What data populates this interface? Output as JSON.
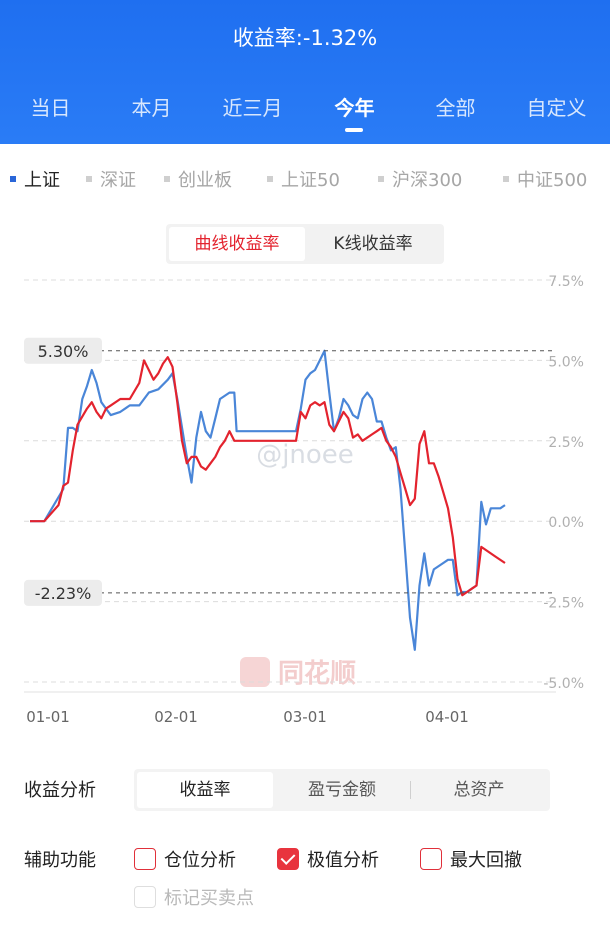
{
  "header": {
    "title": "收益率:-1.32%",
    "tabs": [
      "当日",
      "本月",
      "近三月",
      "今年",
      "全部",
      "自定义"
    ],
    "active_tab": 3
  },
  "index_tabs": {
    "items": [
      "上证",
      "深证",
      "创业板",
      "上证50",
      "沪深300",
      "中证500"
    ],
    "active": 0
  },
  "mode_toggle": {
    "options": [
      "曲线收益率",
      "K线收益率"
    ],
    "active": 0
  },
  "chart_data": {
    "type": "line",
    "x_ticks": [
      "01-01",
      "02-01",
      "03-01",
      "04-01"
    ],
    "y_ticks": [
      "7.5%",
      "5.0%",
      "2.5%",
      "0.0%",
      "-2.5%",
      "-5.0%"
    ],
    "ylim": [
      -5,
      7.5
    ],
    "max_label": "5.30%",
    "min_label": "-2.23%",
    "max_value": 5.3,
    "min_value": -2.23,
    "watermark": "@jnoee",
    "logo": "同花顺",
    "x_range": [
      0,
      100
    ],
    "series": [
      {
        "color": "#4a86d8",
        "points": [
          [
            0,
            0
          ],
          [
            3,
            0
          ],
          [
            7,
            1
          ],
          [
            8,
            2.9
          ],
          [
            9,
            2.9
          ],
          [
            10,
            2.8
          ],
          [
            11,
            3.8
          ],
          [
            12,
            4.2
          ],
          [
            13,
            4.7
          ],
          [
            14,
            4.3
          ],
          [
            15,
            3.7
          ],
          [
            16,
            3.5
          ],
          [
            17,
            3.3
          ],
          [
            19,
            3.4
          ],
          [
            21,
            3.6
          ],
          [
            23,
            3.6
          ],
          [
            25,
            4
          ],
          [
            27,
            4.1
          ],
          [
            29,
            4.4
          ],
          [
            30,
            4.6
          ],
          [
            31,
            3.8
          ],
          [
            33,
            2
          ],
          [
            34,
            1.2
          ],
          [
            35,
            2.6
          ],
          [
            36,
            3.4
          ],
          [
            37,
            2.8
          ],
          [
            38,
            2.6
          ],
          [
            39,
            3.2
          ],
          [
            40,
            3.8
          ],
          [
            42,
            4
          ],
          [
            43,
            4
          ],
          [
            43.5,
            2.8
          ],
          [
            45,
            2.8
          ],
          [
            48,
            2.8
          ],
          [
            51,
            2.8
          ],
          [
            54,
            2.8
          ],
          [
            56,
            2.8
          ],
          [
            57,
            3.5
          ],
          [
            58,
            4.4
          ],
          [
            59,
            4.6
          ],
          [
            60,
            4.7
          ],
          [
            61,
            5
          ],
          [
            62,
            5.3
          ],
          [
            63,
            4
          ],
          [
            64,
            2.8
          ],
          [
            65,
            3.2
          ],
          [
            66,
            3.8
          ],
          [
            67,
            3.6
          ],
          [
            68,
            3.3
          ],
          [
            69,
            3.2
          ],
          [
            70,
            3.8
          ],
          [
            71,
            4
          ],
          [
            72,
            3.8
          ],
          [
            73,
            3.1
          ],
          [
            74,
            3.1
          ],
          [
            75,
            2.6
          ],
          [
            76,
            2.2
          ],
          [
            77,
            2.3
          ],
          [
            78,
            1
          ],
          [
            79,
            -1
          ],
          [
            80,
            -3
          ],
          [
            81,
            -4
          ],
          [
            82,
            -2
          ],
          [
            83,
            -1
          ],
          [
            84,
            -2
          ],
          [
            85,
            -1.5
          ],
          [
            87,
            -1.3
          ],
          [
            88,
            -1.2
          ],
          [
            89,
            -1.2
          ],
          [
            90,
            -2.3
          ],
          [
            91,
            -2.2
          ],
          [
            92,
            -2.2
          ],
          [
            93,
            -2.1
          ],
          [
            94,
            -2
          ],
          [
            95,
            0.6
          ],
          [
            96,
            -0.1
          ],
          [
            97,
            0.4
          ],
          [
            99,
            0.4
          ],
          [
            100,
            0.5
          ]
        ]
      },
      {
        "color": "#e3232e",
        "points": [
          [
            0,
            0
          ],
          [
            3,
            0
          ],
          [
            6,
            0.5
          ],
          [
            7,
            1.1
          ],
          [
            8,
            1.2
          ],
          [
            9,
            2.2
          ],
          [
            10,
            3
          ],
          [
            12,
            3.5
          ],
          [
            13,
            3.7
          ],
          [
            14,
            3.4
          ],
          [
            15,
            3.2
          ],
          [
            16,
            3.5
          ],
          [
            17,
            3.6
          ],
          [
            19,
            3.8
          ],
          [
            21,
            3.8
          ],
          [
            23,
            4.3
          ],
          [
            24,
            5
          ],
          [
            25,
            4.7
          ],
          [
            26,
            4.4
          ],
          [
            27,
            4.6
          ],
          [
            28,
            4.9
          ],
          [
            29,
            5.1
          ],
          [
            30,
            4.8
          ],
          [
            31,
            3.7
          ],
          [
            32,
            2.5
          ],
          [
            33,
            1.8
          ],
          [
            34,
            2
          ],
          [
            35,
            2
          ],
          [
            36,
            1.7
          ],
          [
            37,
            1.6
          ],
          [
            38,
            1.8
          ],
          [
            39,
            2
          ],
          [
            40,
            2.3
          ],
          [
            41,
            2.5
          ],
          [
            42,
            2.8
          ],
          [
            43,
            2.5
          ],
          [
            45,
            2.5
          ],
          [
            48,
            2.5
          ],
          [
            51,
            2.5
          ],
          [
            54,
            2.5
          ],
          [
            56,
            2.5
          ],
          [
            57,
            3.4
          ],
          [
            58,
            3.2
          ],
          [
            59,
            3.6
          ],
          [
            60,
            3.7
          ],
          [
            61,
            3.6
          ],
          [
            62,
            3.7
          ],
          [
            63,
            3
          ],
          [
            64,
            2.8
          ],
          [
            66,
            3.4
          ],
          [
            67,
            3.2
          ],
          [
            68,
            2.6
          ],
          [
            69,
            2.7
          ],
          [
            70,
            2.5
          ],
          [
            71,
            2.6
          ],
          [
            72,
            2.7
          ],
          [
            73,
            2.8
          ],
          [
            74,
            2.9
          ],
          [
            75,
            2.5
          ],
          [
            76,
            2.3
          ],
          [
            77,
            2
          ],
          [
            78,
            1.5
          ],
          [
            79,
            1
          ],
          [
            80,
            0.5
          ],
          [
            81,
            0.7
          ],
          [
            82,
            2.4
          ],
          [
            83,
            2.8
          ],
          [
            84,
            1.8
          ],
          [
            85,
            1.8
          ],
          [
            86,
            1.4
          ],
          [
            87,
            0.9
          ],
          [
            88,
            0.4
          ],
          [
            89,
            -0.5
          ],
          [
            90,
            -1.8
          ],
          [
            91,
            -2.3
          ],
          [
            92,
            -2.2
          ],
          [
            93,
            -2.1
          ],
          [
            94,
            -2
          ],
          [
            95,
            -0.8
          ],
          [
            98,
            -1.1
          ],
          [
            100,
            -1.3
          ]
        ]
      }
    ]
  },
  "analysis": {
    "label": "收益分析",
    "options": [
      "收益率",
      "盈亏金额",
      "总资产"
    ],
    "active": 0
  },
  "aux": {
    "label": "辅助功能",
    "options": [
      {
        "label": "仓位分析",
        "checked": false,
        "disabled": false
      },
      {
        "label": "极值分析",
        "checked": true,
        "disabled": false
      },
      {
        "label": "最大回撤",
        "checked": false,
        "disabled": false
      },
      {
        "label": "标记买卖点",
        "checked": false,
        "disabled": true
      }
    ]
  }
}
